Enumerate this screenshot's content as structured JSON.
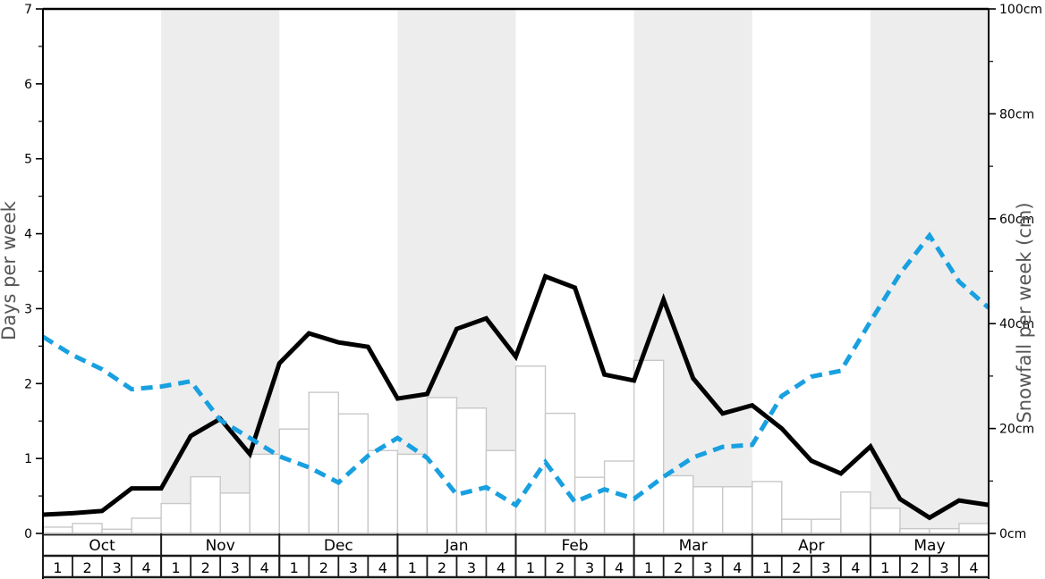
{
  "figure": {
    "left_axis_title": "Days per week",
    "right_axis_title": "Snowfall per week (cm)"
  },
  "chart_data": {
    "type": "bar",
    "months": [
      "Oct",
      "Nov",
      "Dec",
      "Jan",
      "Feb",
      "Mar",
      "Apr",
      "May"
    ],
    "week_labels": [
      "1",
      "2",
      "3",
      "4"
    ],
    "shaded_months": [
      "Nov",
      "Jan",
      "Mar",
      "May"
    ],
    "left_axis": {
      "label": "Days per week",
      "min": 0,
      "max": 7,
      "tick_labels": [
        "0",
        "1",
        "2",
        "3",
        "4",
        "5",
        "6",
        "7"
      ]
    },
    "right_axis": {
      "label": "Snowfall per week (cm)",
      "min": 0,
      "max": 100,
      "tick_labels": [
        "0cm",
        "20cm",
        "40cm",
        "60cm",
        "80cm",
        "100cm"
      ]
    },
    "series": [
      {
        "name": "snowfall-per-week-bars",
        "type": "bar",
        "axis": "right",
        "unit": "cm",
        "values": [
          1.2,
          1.9,
          0.8,
          2.9,
          5.7,
          10.8,
          7.7,
          15.1,
          19.9,
          26.9,
          22.8,
          15.8,
          15.1,
          25.9,
          23.9,
          15.8,
          31.9,
          22.9,
          10.7,
          13.8,
          33,
          11,
          8.9,
          8.9,
          9.9,
          2.7,
          2.7,
          7.9,
          4.8,
          0.9,
          0.9,
          1.9
        ]
      },
      {
        "name": "solid-black-line",
        "type": "line",
        "axis": "left",
        "unit": "days",
        "values": [
          0.25,
          0.27,
          0.3,
          0.6,
          0.6,
          1.3,
          1.53,
          1.06,
          2.27,
          2.67,
          2.55,
          2.49,
          1.8,
          1.86,
          2.73,
          2.87,
          2.36,
          3.43,
          3.28,
          2.12,
          2.04,
          3.12,
          2.07,
          1.6,
          1.71,
          1.4,
          0.97,
          0.8,
          1.16,
          0.46,
          0.21,
          0.44
        ],
        "end_value": 0.38
      },
      {
        "name": "dashed-blue-line",
        "type": "line",
        "axis": "right",
        "unit": "cm",
        "values": [
          37.5,
          34,
          31.3,
          27.5,
          28,
          29,
          21.6,
          18.2,
          14.7,
          12.6,
          9.7,
          14.8,
          18.2,
          14.4,
          7.4,
          8.8,
          5.4,
          13.6,
          6,
          8.4,
          6.6,
          10.8,
          14.5,
          16.5,
          16.9,
          26.2,
          29.9,
          31,
          40.4,
          49.5,
          56.8,
          48
        ],
        "end_value": 43
      }
    ],
    "colors": {
      "band": "#ededed",
      "bar_fill": "#ffffff",
      "bar_stroke": "#c8c8c8",
      "black_line": "#000000",
      "blue_line": "#18a0e0",
      "spine": "#000000",
      "baseline_gray": "#aaaaaa",
      "axis_title": "#555555",
      "tick_label": "#000000"
    }
  }
}
